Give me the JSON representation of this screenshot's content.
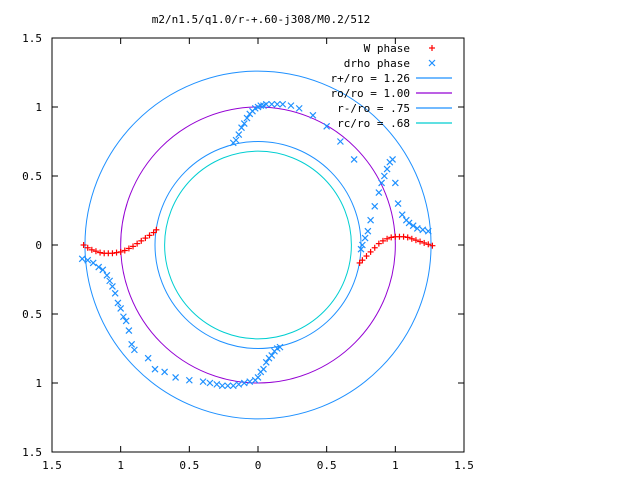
{
  "chart_data": {
    "type": "scatter",
    "title": "m2/n1.5/q1.0/r-+.60-j308/M0.2/512",
    "xlabel": "",
    "ylabel": "",
    "xlim": [
      -1.5,
      1.5
    ],
    "ylim": [
      -1.5,
      1.5
    ],
    "x_ticks": [
      -1.5,
      -1,
      -0.5,
      0,
      0.5,
      1,
      1.5
    ],
    "y_ticks": [
      -1.5,
      -1,
      -0.5,
      0,
      0.5,
      1,
      1.5
    ],
    "x_tick_labels": [
      "1.5",
      "1",
      "0.5",
      "0",
      "0.5",
      "1",
      "1.5"
    ],
    "y_tick_labels": [
      "1.5",
      "1",
      "0.5",
      "0",
      "0.5",
      "1",
      "1.5"
    ],
    "grid": false,
    "legend_position": "top-right",
    "legend": [
      {
        "label": "W phase",
        "marker": "plus",
        "color": "#ff0000"
      },
      {
        "label": "drho phase",
        "marker": "cross",
        "color": "#1e90ff"
      },
      {
        "label": "r+/ro = 1.26",
        "marker": "line",
        "color": "#1e90ff"
      },
      {
        "label": "ro/ro = 1.00",
        "marker": "line",
        "color": "#9400d3"
      },
      {
        "label": "r-/ro = .75",
        "marker": "line",
        "color": "#1e90ff"
      },
      {
        "label": "rc/ro = .68",
        "marker": "line",
        "color": "#00ced1"
      }
    ],
    "circles": [
      {
        "name": "r+/ro = 1.26",
        "radius": 1.26,
        "color": "#1e90ff"
      },
      {
        "name": "ro/ro = 1.00",
        "radius": 1.0,
        "color": "#9400d3"
      },
      {
        "name": "r-/ro = .75",
        "radius": 0.75,
        "color": "#1e90ff"
      },
      {
        "name": "rc/ro = .68",
        "radius": 0.68,
        "color": "#00ced1"
      }
    ],
    "series": [
      {
        "name": "W phase",
        "color": "#ff0000",
        "marker": "plus",
        "x": [
          -1.27,
          -1.24,
          -1.21,
          -1.18,
          -1.15,
          -1.12,
          -1.09,
          -1.06,
          -1.03,
          -1.0,
          -0.97,
          -0.94,
          -0.91,
          -0.88,
          -0.85,
          -0.82,
          -0.79,
          -0.76,
          -0.74,
          0.74,
          0.76,
          0.79,
          0.82,
          0.85,
          0.88,
          0.91,
          0.94,
          0.97,
          1.0,
          1.03,
          1.06,
          1.09,
          1.12,
          1.15,
          1.18,
          1.21,
          1.24,
          1.27
        ],
        "y": [
          0.0,
          -0.02,
          -0.035,
          -0.045,
          -0.055,
          -0.06,
          -0.06,
          -0.06,
          -0.055,
          -0.05,
          -0.04,
          -0.025,
          -0.01,
          0.01,
          0.03,
          0.05,
          0.07,
          0.09,
          0.11,
          -0.13,
          -0.11,
          -0.08,
          -0.05,
          -0.02,
          0.01,
          0.03,
          0.045,
          0.055,
          0.06,
          0.06,
          0.06,
          0.055,
          0.045,
          0.035,
          0.025,
          0.015,
          0.005,
          -0.005
        ]
      },
      {
        "name": "drho phase",
        "color": "#1e90ff",
        "marker": "cross",
        "x": [
          -1.28,
          -1.24,
          -1.2,
          -1.16,
          -1.13,
          -1.1,
          -1.08,
          -1.06,
          -1.04,
          -1.02,
          -1.0,
          -0.98,
          -0.96,
          -0.94,
          -0.92,
          -0.9,
          -0.8,
          -0.75,
          -0.68,
          -0.6,
          -0.5,
          -0.4,
          -0.35,
          -0.3,
          -0.26,
          -0.22,
          -0.18,
          -0.14,
          -0.1,
          -0.06,
          -0.02,
          0.0,
          0.02,
          0.04,
          0.06,
          0.08,
          0.1,
          0.12,
          0.14,
          0.16,
          0.75,
          0.76,
          0.78,
          0.8,
          0.82,
          0.85,
          0.88,
          0.9,
          0.92,
          0.94,
          0.96,
          0.98,
          1.0,
          1.02,
          1.05,
          1.08,
          1.1,
          1.13,
          1.16,
          1.2,
          1.24,
          -0.18,
          -0.16,
          -0.14,
          -0.12,
          -0.1,
          -0.08,
          -0.06,
          -0.04,
          -0.02,
          0.0,
          0.02,
          0.04,
          0.06,
          0.1,
          0.14,
          0.18,
          0.24,
          0.3,
          0.4,
          0.5,
          0.6,
          0.7
        ],
        "y": [
          -0.1,
          -0.11,
          -0.13,
          -0.16,
          -0.18,
          -0.22,
          -0.26,
          -0.3,
          -0.35,
          -0.42,
          -0.46,
          -0.52,
          -0.55,
          -0.62,
          -0.72,
          -0.76,
          -0.82,
          -0.9,
          -0.92,
          -0.96,
          -0.98,
          -0.99,
          -1.0,
          -1.01,
          -1.02,
          -1.02,
          -1.02,
          -1.01,
          -1.0,
          -0.99,
          -0.98,
          -0.96,
          -0.92,
          -0.9,
          -0.85,
          -0.82,
          -0.8,
          -0.77,
          -0.75,
          -0.74,
          -0.03,
          0.0,
          0.05,
          0.1,
          0.18,
          0.28,
          0.38,
          0.45,
          0.5,
          0.55,
          0.6,
          0.62,
          0.45,
          0.3,
          0.22,
          0.18,
          0.16,
          0.14,
          0.12,
          0.11,
          0.1,
          0.74,
          0.76,
          0.8,
          0.85,
          0.88,
          0.92,
          0.95,
          0.97,
          0.99,
          1.0,
          1.01,
          1.01,
          1.02,
          1.02,
          1.02,
          1.02,
          1.01,
          0.99,
          0.94,
          0.86,
          0.75,
          0.62
        ]
      }
    ]
  }
}
